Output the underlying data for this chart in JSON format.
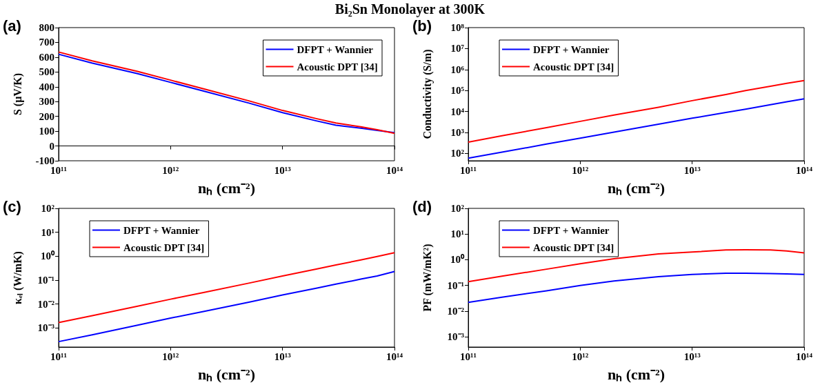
{
  "chart_data": [
    {
      "type": "line",
      "title": "Bi₂Sn Monolayer at 300K",
      "annotations": [
        "(a)"
      ],
      "xlabel": "nₕ (cm⁻²)",
      "ylabel": "S (μV/K)",
      "log": "x",
      "legend": "top right",
      "xlim": [
        100000000000.0,
        100000000000000.0
      ],
      "xticks": [
        {
          "value": 100000000000.0,
          "label": "10¹¹"
        },
        {
          "value": 1000000000000.0,
          "label": "10¹²"
        },
        {
          "value": 10000000000000.0,
          "label": "10¹³"
        },
        {
          "value": 100000000000000.0,
          "label": "10¹⁴"
        }
      ],
      "ylim": [
        -100,
        800
      ],
      "yticks": [
        -100,
        0,
        100,
        200,
        300,
        400,
        500,
        600,
        700,
        800
      ],
      "x": [
        100000000000.0,
        200000000000.0,
        500000000000.0,
        1000000000000.0,
        2000000000000.0,
        5000000000000.0,
        10000000000000.0,
        20000000000000.0,
        30000000000000.0,
        50000000000000.0,
        70000000000000.0,
        100000000000000.0
      ],
      "series": [
        {
          "name": "DFPT + Wannier",
          "color": "#0000ff",
          "values": [
            620,
            560,
            490,
            430,
            370,
            290,
            225,
            170,
            140,
            120,
            105,
            90
          ]
        },
        {
          "name": "Acoustic DPT [34]",
          "color": "#ff0000",
          "values": [
            635,
            575,
            505,
            445,
            385,
            305,
            240,
            185,
            155,
            130,
            110,
            85
          ]
        }
      ]
    },
    {
      "type": "line",
      "annotations": [
        "(b)"
      ],
      "xlabel": "nₕ (cm⁻²)",
      "ylabel": "Conductivity (S/m)",
      "log": "xy",
      "legend": "top left",
      "xlim": [
        100000000000.0,
        100000000000000.0
      ],
      "xticks": [
        {
          "value": 100000000000.0,
          "label": "10¹¹"
        },
        {
          "value": 1000000000000.0,
          "label": "10¹²"
        },
        {
          "value": 10000000000000.0,
          "label": "10¹³"
        },
        {
          "value": 100000000000000.0,
          "label": "10¹⁴"
        }
      ],
      "ylim": [
        45,
        100000000.0
      ],
      "yticks": [
        {
          "value": 100,
          "label": "10²"
        },
        {
          "value": 1000,
          "label": "10³"
        },
        {
          "value": 10000,
          "label": "10⁴"
        },
        {
          "value": 100000,
          "label": "10⁵"
        },
        {
          "value": 1000000,
          "label": "10⁶"
        },
        {
          "value": 10000000,
          "label": "10⁷"
        },
        {
          "value": 100000000,
          "label": "10⁸"
        }
      ],
      "x": [
        100000000000.0,
        200000000000.0,
        500000000000.0,
        1000000000000.0,
        2000000000000.0,
        5000000000000.0,
        10000000000000.0,
        20000000000000.0,
        30000000000000.0,
        50000000000000.0,
        70000000000000.0,
        100000000000000.0
      ],
      "series": [
        {
          "name": "DFPT + Wannier",
          "color": "#0000ff",
          "values": [
            60,
            115,
            280,
            540,
            1050,
            2500,
            4800,
            9000,
            13000,
            21000,
            29000,
            40000
          ]
        },
        {
          "name": "Acoustic DPT [34]",
          "color": "#ff0000",
          "values": [
            350,
            700,
            1700,
            3400,
            6800,
            16000,
            33000,
            65000,
            100000,
            160000,
            220000,
            300000
          ]
        }
      ]
    },
    {
      "type": "line",
      "annotations": [
        "(c)"
      ],
      "xlabel": "nₕ (cm⁻²)",
      "ylabel": "κₑₗ (W/mK)",
      "log": "xy",
      "legend": "top left",
      "xlim": [
        100000000000.0,
        100000000000000.0
      ],
      "xticks": [
        {
          "value": 100000000000.0,
          "label": "10¹¹"
        },
        {
          "value": 1000000000000.0,
          "label": "10¹²"
        },
        {
          "value": 10000000000000.0,
          "label": "10¹³"
        },
        {
          "value": 100000000000000.0,
          "label": "10¹⁴"
        }
      ],
      "ylim": [
        0.00016,
        100
      ],
      "yticks": [
        {
          "value": 0.001,
          "label": "10⁻³"
        },
        {
          "value": 0.01,
          "label": "10⁻²"
        },
        {
          "value": 0.1,
          "label": "10⁻¹"
        },
        {
          "value": 1,
          "label": "10⁰"
        },
        {
          "value": 10,
          "label": "10¹"
        },
        {
          "value": 100,
          "label": "10²"
        }
      ],
      "x": [
        100000000000.0,
        200000000000.0,
        500000000000.0,
        1000000000000.0,
        2000000000000.0,
        5000000000000.0,
        10000000000000.0,
        20000000000000.0,
        30000000000000.0,
        50000000000000.0,
        70000000000000.0,
        100000000000000.0
      ],
      "series": [
        {
          "name": "DFPT + Wannier",
          "color": "#0000ff",
          "values": [
            0.00027,
            0.00052,
            0.0013,
            0.0026,
            0.005,
            0.012,
            0.024,
            0.046,
            0.068,
            0.11,
            0.15,
            0.23
          ]
        },
        {
          "name": "Acoustic DPT [34]",
          "color": "#ff0000",
          "values": [
            0.0017,
            0.0033,
            0.008,
            0.016,
            0.031,
            0.075,
            0.15,
            0.29,
            0.43,
            0.7,
            0.97,
            1.4
          ]
        }
      ]
    },
    {
      "type": "line",
      "annotations": [
        "(d)"
      ],
      "xlabel": "nₕ (cm⁻²)",
      "ylabel": "PF (mW/mK²)",
      "log": "xy",
      "legend": "top left",
      "xlim": [
        100000000000.0,
        100000000000000.0
      ],
      "xticks": [
        {
          "value": 100000000000.0,
          "label": "10¹¹"
        },
        {
          "value": 1000000000000.0,
          "label": "10¹²"
        },
        {
          "value": 10000000000000.0,
          "label": "10¹³"
        },
        {
          "value": 100000000000000.0,
          "label": "10¹⁴"
        }
      ],
      "ylim": [
        0.0004,
        100
      ],
      "yticks": [
        {
          "value": 0.001,
          "label": "10⁻³"
        },
        {
          "value": 0.01,
          "label": "10⁻²"
        },
        {
          "value": 0.1,
          "label": "10⁻¹"
        },
        {
          "value": 1,
          "label": "10⁰"
        },
        {
          "value": 10,
          "label": "10¹"
        },
        {
          "value": 100,
          "label": "10²"
        }
      ],
      "x": [
        100000000000.0,
        200000000000.0,
        500000000000.0,
        1000000000000.0,
        2000000000000.0,
        5000000000000.0,
        10000000000000.0,
        20000000000000.0,
        30000000000000.0,
        50000000000000.0,
        70000000000000.0,
        100000000000000.0
      ],
      "series": [
        {
          "name": "DFPT + Wannier",
          "color": "#0000ff",
          "values": [
            0.022,
            0.035,
            0.062,
            0.1,
            0.15,
            0.22,
            0.27,
            0.3,
            0.3,
            0.29,
            0.28,
            0.27
          ]
        },
        {
          "name": "Acoustic DPT [34]",
          "color": "#ff0000",
          "values": [
            0.14,
            0.23,
            0.43,
            0.7,
            1.1,
            1.7,
            2.0,
            2.4,
            2.45,
            2.4,
            2.2,
            1.85
          ]
        }
      ]
    }
  ]
}
